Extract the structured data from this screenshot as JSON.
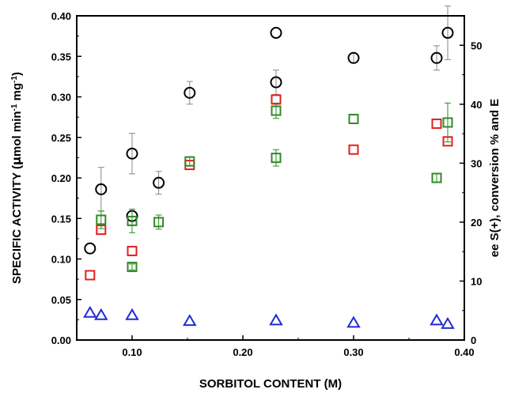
{
  "chart_data": {
    "type": "scatter",
    "xlabel": "SORBITOL CONTENT (M)",
    "ylabel_left": {
      "prefix": "SPECIFIC ACTIVITY (",
      "mu": "μ",
      "mid": "mol min",
      "sup1": "-1",
      "mid2": " mg",
      "sup2": "-1",
      "suffix": ")"
    },
    "ylabel_right": "ee S(+), conversion % and E",
    "xlim": [
      0.05,
      0.4
    ],
    "ylim_left": [
      0.0,
      0.4
    ],
    "ylim_right": [
      0,
      55
    ],
    "x_ticks": [
      {
        "value": 0.1,
        "label": "0.10"
      },
      {
        "value": 0.2,
        "label": "0.20"
      },
      {
        "value": 0.3,
        "label": "0.30"
      },
      {
        "value": 0.4,
        "label": "0.40"
      }
    ],
    "y_ticks_left": [
      {
        "value": 0.0,
        "label": "0.00"
      },
      {
        "value": 0.05,
        "label": "0.05"
      },
      {
        "value": 0.1,
        "label": "0.10"
      },
      {
        "value": 0.15,
        "label": "0.15"
      },
      {
        "value": 0.2,
        "label": "0.20"
      },
      {
        "value": 0.25,
        "label": "0.25"
      },
      {
        "value": 0.3,
        "label": "0.30"
      },
      {
        "value": 0.35,
        "label": "0.35"
      },
      {
        "value": 0.4,
        "label": "0.40"
      }
    ],
    "y_ticks_right": [
      {
        "value": 0,
        "label": "0"
      },
      {
        "value": 10,
        "label": "10"
      },
      {
        "value": 20,
        "label": "20"
      },
      {
        "value": 30,
        "label": "30"
      },
      {
        "value": 40,
        "label": "40"
      },
      {
        "value": 50,
        "label": "50"
      }
    ],
    "series": [
      {
        "marker": "circle",
        "color": "#000000",
        "axis": "left",
        "points": [
          {
            "x": 0.062,
            "y": 0.113
          },
          {
            "x": 0.072,
            "y": 0.186,
            "err": 0.027
          },
          {
            "x": 0.1,
            "y": 0.153
          },
          {
            "x": 0.1,
            "y": 0.23,
            "err": 0.025
          },
          {
            "x": 0.124,
            "y": 0.194,
            "err": 0.014
          },
          {
            "x": 0.152,
            "y": 0.305,
            "err": 0.014
          },
          {
            "x": 0.23,
            "y": 0.318,
            "err": 0.015
          },
          {
            "x": 0.23,
            "y": 0.379
          },
          {
            "x": 0.3,
            "y": 0.348,
            "err": 0.006
          },
          {
            "x": 0.375,
            "y": 0.348,
            "err": 0.015
          },
          {
            "x": 0.385,
            "y": 0.379,
            "err": 0.033
          }
        ]
      },
      {
        "marker": "square",
        "color": "#e0201b",
        "axis": "right",
        "points": [
          {
            "x": 0.062,
            "y": 11.0
          },
          {
            "x": 0.072,
            "y": 18.7
          },
          {
            "x": 0.1,
            "y": 15.1
          },
          {
            "x": 0.152,
            "y": 29.7
          },
          {
            "x": 0.23,
            "y": 40.8
          },
          {
            "x": 0.3,
            "y": 32.3
          },
          {
            "x": 0.375,
            "y": 36.7
          },
          {
            "x": 0.385,
            "y": 33.7
          }
        ]
      },
      {
        "marker": "square",
        "color": "#2e8b25",
        "axis": "right",
        "points": [
          {
            "x": 0.072,
            "y": 20.4,
            "err": 1.5
          },
          {
            "x": 0.1,
            "y": 20.2,
            "err": 2.0
          },
          {
            "x": 0.1,
            "y": 12.4,
            "err": 0.5
          },
          {
            "x": 0.124,
            "y": 20.0,
            "err": 1.2
          },
          {
            "x": 0.152,
            "y": 30.3,
            "err": 0.8
          },
          {
            "x": 0.23,
            "y": 38.9,
            "err": 1.3
          },
          {
            "x": 0.23,
            "y": 30.9,
            "err": 1.4
          },
          {
            "x": 0.3,
            "y": 37.5
          },
          {
            "x": 0.375,
            "y": 27.5,
            "err": 0.8
          },
          {
            "x": 0.385,
            "y": 36.9,
            "err": 3.3
          }
        ]
      },
      {
        "marker": "triangle",
        "color": "#1f2bd6",
        "axis": "right",
        "points": [
          {
            "x": 0.062,
            "y": 4.6
          },
          {
            "x": 0.072,
            "y": 4.2
          },
          {
            "x": 0.1,
            "y": 4.2
          },
          {
            "x": 0.152,
            "y": 3.2
          },
          {
            "x": 0.23,
            "y": 3.3
          },
          {
            "x": 0.3,
            "y": 2.9
          },
          {
            "x": 0.375,
            "y": 3.3
          },
          {
            "x": 0.385,
            "y": 2.7
          }
        ]
      }
    ]
  }
}
